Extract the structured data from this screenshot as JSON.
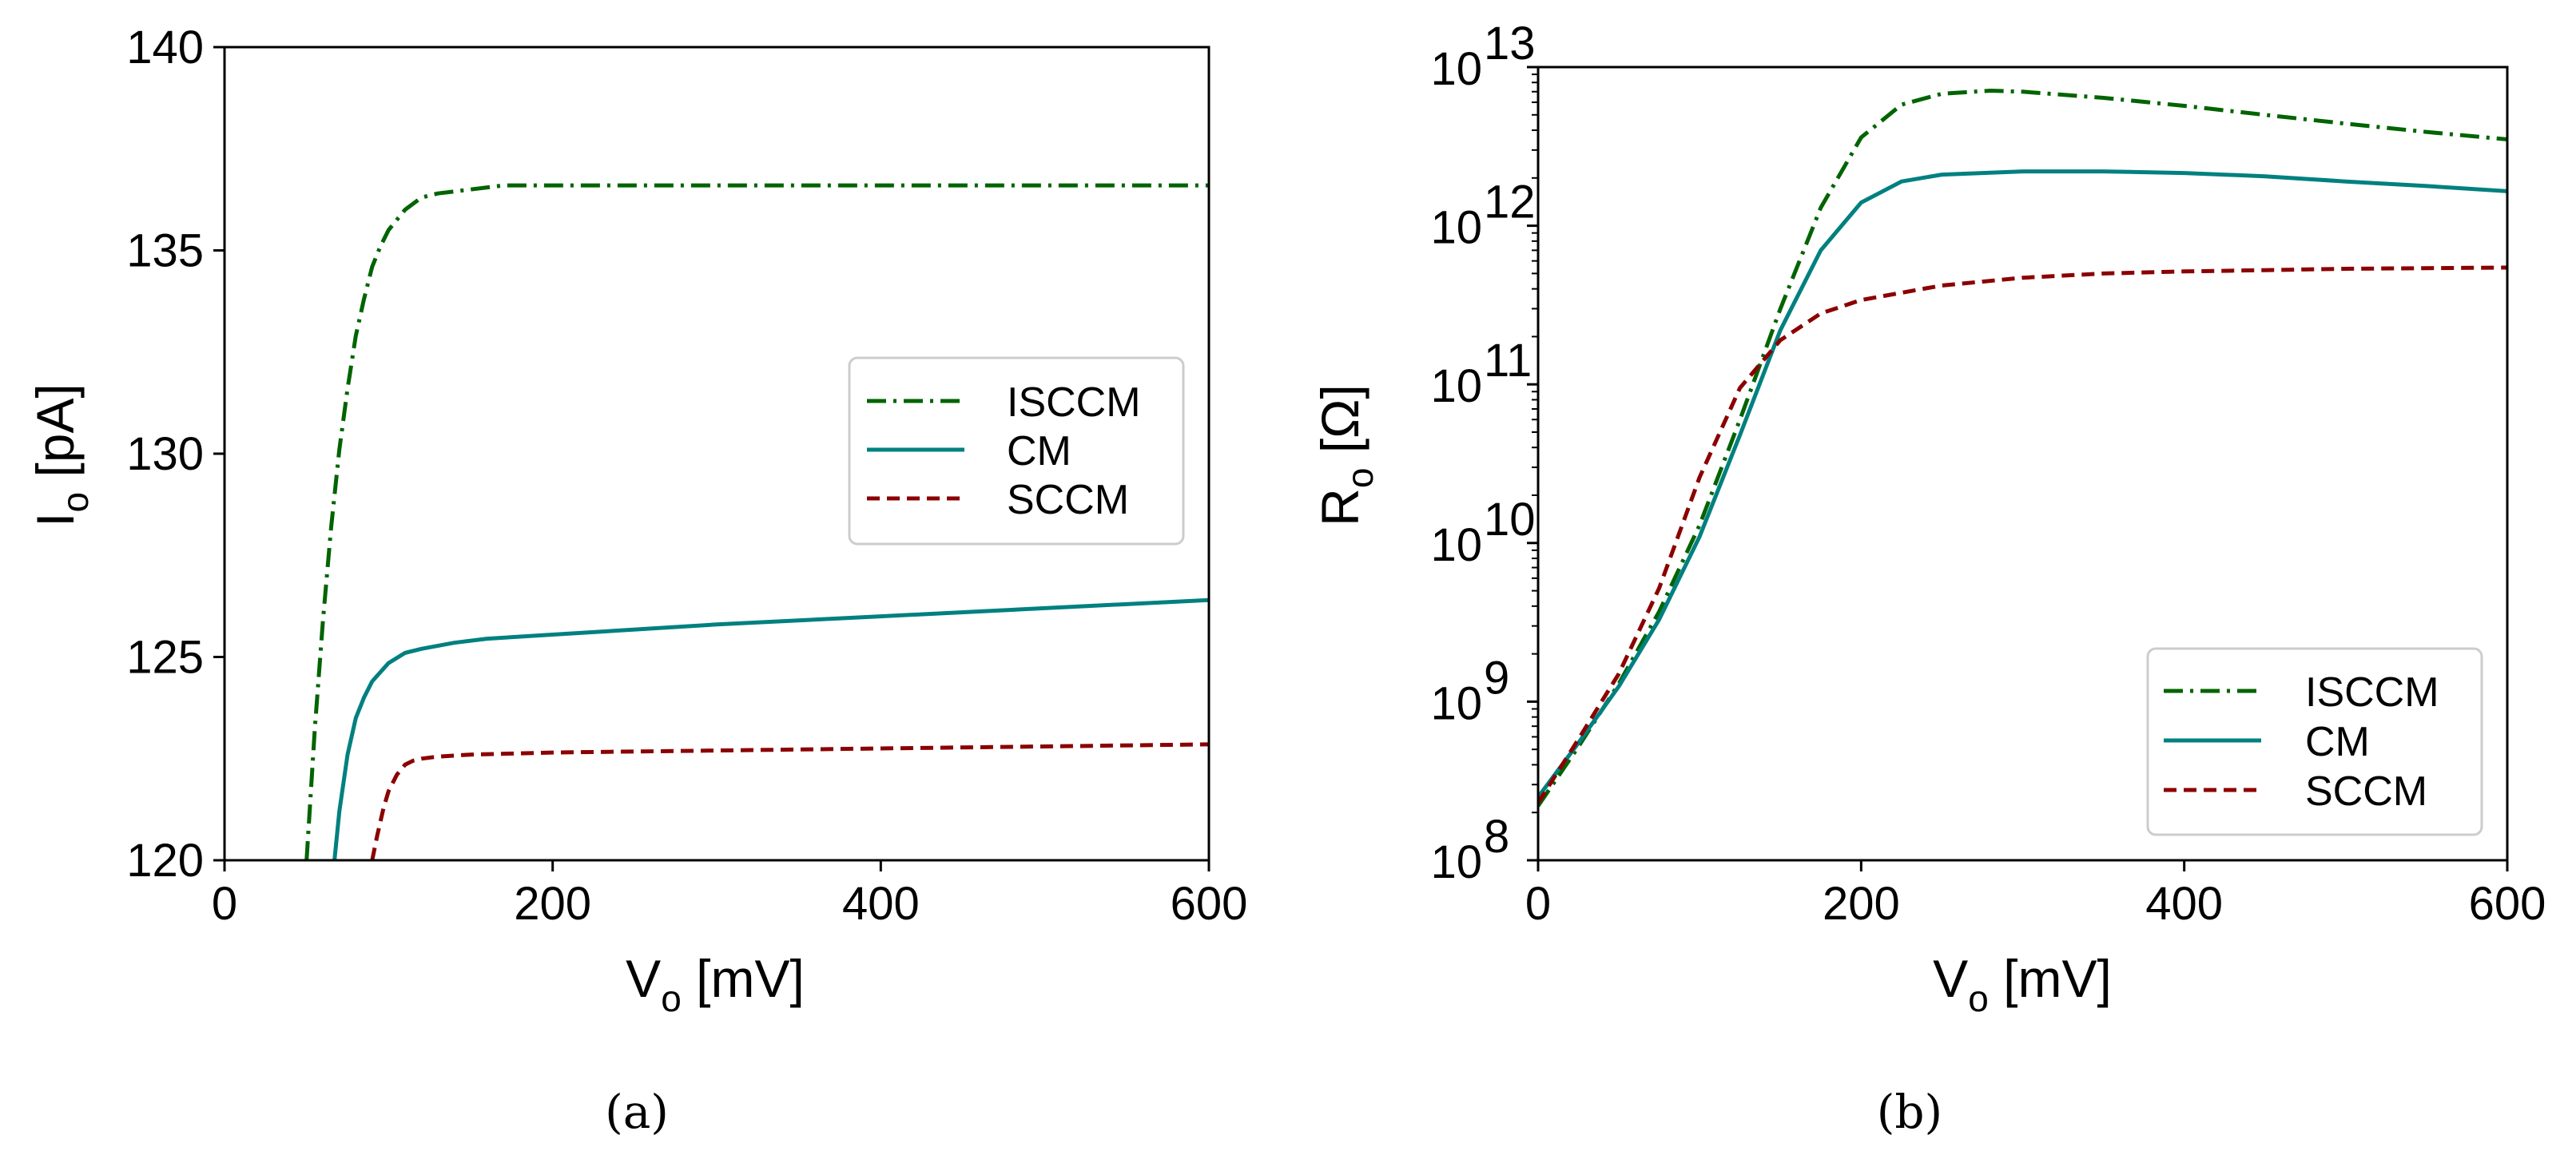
{
  "chart_data": [
    {
      "type": "line",
      "caption": "(a)",
      "xlabel": "V",
      "xlabel_sub": "o",
      "xlabel_unit": " [mV]",
      "ylabel": "I",
      "ylabel_sub": "o",
      "ylabel_unit": " [pA]",
      "xlim": [
        0,
        600
      ],
      "ylim": [
        120,
        140
      ],
      "xticks": [
        0,
        200,
        400,
        600
      ],
      "yticks": [
        120,
        125,
        130,
        135,
        140
      ],
      "xtick_labels": [
        "0",
        "200",
        "400",
        "600"
      ],
      "ytick_labels": [
        "120",
        "125",
        "130",
        "135",
        "140"
      ],
      "legend_position": "center-right",
      "series": [
        {
          "name": "ISCCM",
          "color": "#006400",
          "style": "dashdot",
          "x": [
            50,
            55,
            60,
            65,
            70,
            75,
            80,
            85,
            90,
            95,
            100,
            110,
            120,
            130,
            150,
            170,
            200,
            300,
            400,
            500,
            600
          ],
          "y": [
            120,
            123.2,
            125.9,
            128.2,
            130.1,
            131.6,
            132.9,
            133.8,
            134.6,
            135.1,
            135.5,
            136.0,
            136.3,
            136.4,
            136.5,
            136.6,
            136.6,
            136.6,
            136.6,
            136.6,
            136.6
          ]
        },
        {
          "name": "CM",
          "color": "#008080",
          "style": "solid",
          "x": [
            67,
            70,
            75,
            80,
            85,
            90,
            100,
            110,
            120,
            140,
            160,
            200,
            300,
            400,
            500,
            600
          ],
          "y": [
            120,
            121.2,
            122.6,
            123.5,
            124.0,
            124.4,
            124.85,
            125.1,
            125.2,
            125.35,
            125.45,
            125.55,
            125.8,
            126.0,
            126.2,
            126.4
          ]
        },
        {
          "name": "SCCM",
          "color": "#8b0000",
          "style": "dashed",
          "x": [
            90,
            93,
            97,
            100,
            105,
            110,
            115,
            120,
            130,
            150,
            200,
            300,
            400,
            500,
            600
          ],
          "y": [
            120,
            120.6,
            121.3,
            121.7,
            122.1,
            122.35,
            122.45,
            122.5,
            122.55,
            122.6,
            122.65,
            122.7,
            122.75,
            122.8,
            122.85
          ]
        }
      ]
    },
    {
      "type": "line",
      "caption": "(b)",
      "xlabel": "V",
      "xlabel_sub": "o",
      "xlabel_unit": " [mV]",
      "ylabel": "R",
      "ylabel_sub": "o",
      "ylabel_unit": " [Ω]",
      "yscale": "log",
      "xlim": [
        0,
        600
      ],
      "ylim": [
        100000000,
        10000000000000
      ],
      "xticks": [
        0,
        200,
        400,
        600
      ],
      "yticks": [
        100000000,
        1000000000,
        10000000000,
        100000000000,
        1000000000000,
        10000000000000
      ],
      "xtick_labels": [
        "0",
        "200",
        "400",
        "600"
      ],
      "ytick_base": "10",
      "ytick_exponents": [
        "8",
        "9",
        "10",
        "11",
        "12",
        "13"
      ],
      "legend_position": "lower-right",
      "series": [
        {
          "name": "ISCCM",
          "color": "#006400",
          "style": "dashdot",
          "x": [
            0,
            25,
            50,
            75,
            100,
            125,
            150,
            175,
            200,
            225,
            250,
            280,
            300,
            350,
            400,
            450,
            500,
            550,
            600
          ],
          "y": [
            220000000.0,
            520000000.0,
            1300000000.0,
            3700000000.0,
            13000000000.0,
            60000000000.0,
            300000000000.0,
            1300000000000.0,
            3600000000000.0,
            5800000000000.0,
            6800000000000.0,
            7100000000000.0,
            7000000000000.0,
            6400000000000.0,
            5700000000000.0,
            5000000000000.0,
            4400000000000.0,
            3900000000000.0,
            3500000000000.0
          ]
        },
        {
          "name": "CM",
          "color": "#008080",
          "style": "solid",
          "x": [
            0,
            25,
            50,
            75,
            100,
            125,
            150,
            175,
            200,
            225,
            250,
            300,
            350,
            400,
            450,
            500,
            550,
            600
          ],
          "y": [
            250000000.0,
            550000000.0,
            1250000000.0,
            3300000000.0,
            11000000000.0,
            48000000000.0,
            220000000000.0,
            700000000000.0,
            1400000000000.0,
            1900000000000.0,
            2100000000000.0,
            2200000000000.0,
            2200000000000.0,
            2150000000000.0,
            2050000000000.0,
            1900000000000.0,
            1780000000000.0,
            1650000000000.0
          ]
        },
        {
          "name": "SCCM",
          "color": "#8b0000",
          "style": "dashed",
          "x": [
            0,
            25,
            50,
            75,
            100,
            125,
            150,
            175,
            200,
            250,
            300,
            350,
            400,
            450,
            500,
            550,
            600
          ],
          "y": [
            230000000.0,
            580000000.0,
            1500000000.0,
            5200000000.0,
            26000000000.0,
            95000000000.0,
            190000000000.0,
            280000000000.0,
            340000000000.0,
            420000000000.0,
            470000000000.0,
            500000000000.0,
            515000000000.0,
            525000000000.0,
            535000000000.0,
            540000000000.0,
            545000000000.0
          ]
        }
      ]
    }
  ]
}
